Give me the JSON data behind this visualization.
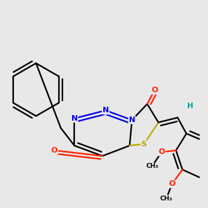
{
  "bg_color": "#e8e8e8",
  "atom_colors": {
    "N": "#0000ee",
    "O": "#ff2200",
    "S": "#bbaa00",
    "H": "#009999",
    "C": "#000000"
  },
  "bond_color": "#000000",
  "bond_width": 1.6,
  "figsize": [
    3.0,
    3.0
  ],
  "dpi": 100,
  "xlim": [
    30,
    270
  ],
  "ylim": [
    30,
    290
  ]
}
